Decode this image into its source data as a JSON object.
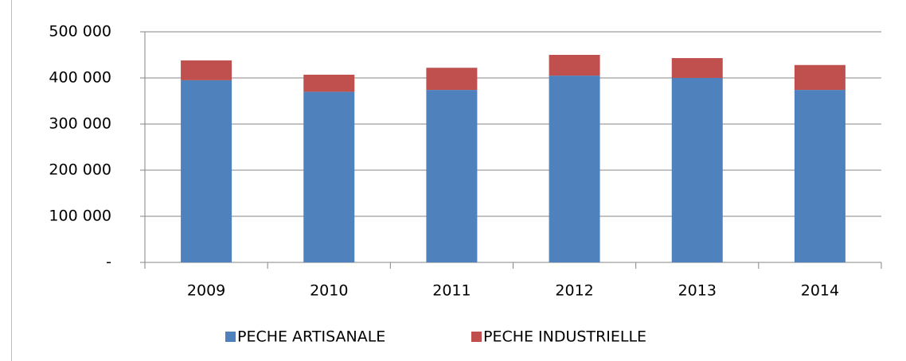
{
  "chart_data": {
    "type": "stacked_bar",
    "categories": [
      "2009",
      "2010",
      "2011",
      "2012",
      "2013",
      "2014"
    ],
    "series": [
      {
        "name": "PECHE ARTISANALE",
        "color": "#4f81bd",
        "values": [
          395000,
          370000,
          374000,
          405000,
          400000,
          374000
        ]
      },
      {
        "name": "PECHE INDUSTRIELLE",
        "color": "#c0504d",
        "values": [
          43000,
          37000,
          48000,
          45000,
          43000,
          54000
        ]
      }
    ],
    "ylim": [
      0,
      500000
    ],
    "yticks": [
      {
        "value": 0,
        "label": "-"
      },
      {
        "value": 100000,
        "label": "100 000"
      },
      {
        "value": 200000,
        "label": "200 000"
      },
      {
        "value": 300000,
        "label": "300 000"
      },
      {
        "value": 400000,
        "label": "400 000"
      },
      {
        "value": 500000,
        "label": "500 000"
      }
    ],
    "grid": true,
    "legend": "bottom"
  }
}
